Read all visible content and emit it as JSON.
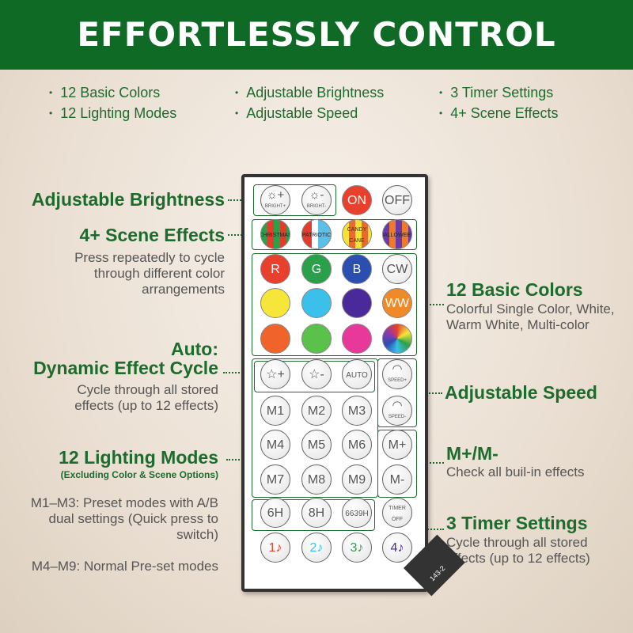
{
  "header": {
    "title": "EFFORTLESSLY CONTROL"
  },
  "features": [
    [
      "12 Basic Colors",
      "12 Lighting Modes"
    ],
    [
      "Adjustable Brightness",
      "Adjustable Speed"
    ],
    [
      "3 Timer Settings",
      "4+ Scene Effects"
    ]
  ],
  "callouts": {
    "brightness": {
      "title": "Adjustable Brightness"
    },
    "scene": {
      "title": "4+ Scene Effects",
      "desc": "Press repeatedly to cycle through different color arrangements"
    },
    "auto": {
      "title1": "Auto:",
      "title2": "Dynamic Effect Cycle",
      "desc": "Cycle through all stored effects (up to 12 effects)"
    },
    "modes": {
      "title": "12 Lighting Modes",
      "sub": "(Excluding Color & Scene Options)",
      "desc1": "M1–M3: Preset modes with A/B dual settings (Quick press to switch)",
      "desc2": "M4–M9: Normal Pre-set modes"
    },
    "colors": {
      "title": "12 Basic Colors",
      "desc": "Colorful Single Color, White, Warm White, Multi-color"
    },
    "speed": {
      "title": "Adjustable Speed"
    },
    "mpm": {
      "title": "M+/M-",
      "desc": "Check all buil-in effects"
    },
    "timer": {
      "title": "3 Timer Settings",
      "desc": "Cycle through all stored effects (up to 12 effects)"
    }
  },
  "remote": {
    "model": "143-2",
    "buttons": [
      {
        "label": "☼+",
        "sub": "BRIGHT+",
        "bg": ""
      },
      {
        "label": "☼-",
        "sub": "BRIGHT-",
        "bg": ""
      },
      {
        "label": "ON",
        "bg": "#e8402c",
        "fg": "#fff"
      },
      {
        "label": "OFF",
        "bg": ""
      },
      {
        "label": "CHRISTMAS",
        "bg": "repeating-linear-gradient(90deg,#2aa04a 0 8px,#e43b2c 8px 16px)",
        "fg": "#222"
      },
      {
        "label": "PATRIOTIC",
        "bg": "linear-gradient(90deg,#e43b2c 33%,#fff 33% 55%,#5bbfe8 55%)",
        "fg": "#222"
      },
      {
        "label": "CANDY CANE",
        "bg": "repeating-linear-gradient(90deg,#f4e23a 0 8px,#e86a2c 8px 16px)",
        "fg": "#333"
      },
      {
        "label": "HALLOWEEN",
        "bg": "repeating-linear-gradient(90deg,#6a3aa8 0 8px,#f07a2a 8px 16px)",
        "fg": "#222"
      },
      {
        "label": "R",
        "bg": "#e8402c",
        "fg": "#fff"
      },
      {
        "label": "G",
        "bg": "#2aa04a",
        "fg": "#fff"
      },
      {
        "label": "B",
        "bg": "#2a4fb0",
        "fg": "#fff"
      },
      {
        "label": "CW",
        "bg": ""
      },
      {
        "label": "",
        "bg": "#f6e63a"
      },
      {
        "label": "",
        "bg": "#3ac0ea"
      },
      {
        "label": "",
        "bg": "#4a2a9a"
      },
      {
        "label": "WW",
        "bg": "#f08a28",
        "fg": "#fff"
      },
      {
        "label": "",
        "bg": "#f0642c"
      },
      {
        "label": "",
        "bg": "#5ac24a"
      },
      {
        "label": "",
        "bg": "#e8389a"
      },
      {
        "label": "",
        "bg": "conic-gradient(#e8402c,#f6e63a,#2aa04a,#3ac0ea,#2a4fb0,#8a3ab0,#e8402c)"
      },
      {
        "label": "☆+",
        "bg": ""
      },
      {
        "label": "☆-",
        "bg": ""
      },
      {
        "label": "AUTO",
        "bg": ""
      },
      {
        "label": "◠",
        "sub": "SPEED+",
        "bg": ""
      },
      {
        "label": "M1",
        "bg": ""
      },
      {
        "label": "M2",
        "bg": ""
      },
      {
        "label": "M3",
        "bg": ""
      },
      {
        "label": "◠",
        "sub": "SPEED-",
        "bg": ""
      },
      {
        "label": "M4",
        "bg": ""
      },
      {
        "label": "M5",
        "bg": ""
      },
      {
        "label": "M6",
        "bg": ""
      },
      {
        "label": "M+",
        "bg": ""
      },
      {
        "label": "M7",
        "bg": ""
      },
      {
        "label": "M8",
        "bg": ""
      },
      {
        "label": "M9",
        "bg": ""
      },
      {
        "label": "M-",
        "bg": ""
      },
      {
        "label": "6H",
        "bg": ""
      },
      {
        "label": "8H",
        "bg": ""
      },
      {
        "label": "6639H",
        "bg": ""
      },
      {
        "label": "TIMER OFF",
        "bg": ""
      },
      {
        "label": "1♪",
        "bg": "",
        "fg": "#e8402c"
      },
      {
        "label": "2♪",
        "bg": "",
        "fg": "#3ac0ea"
      },
      {
        "label": "3♪",
        "bg": "",
        "fg": "#2aa04a"
      },
      {
        "label": "4♪",
        "bg": "",
        "fg": "#4a2a9a"
      }
    ]
  }
}
